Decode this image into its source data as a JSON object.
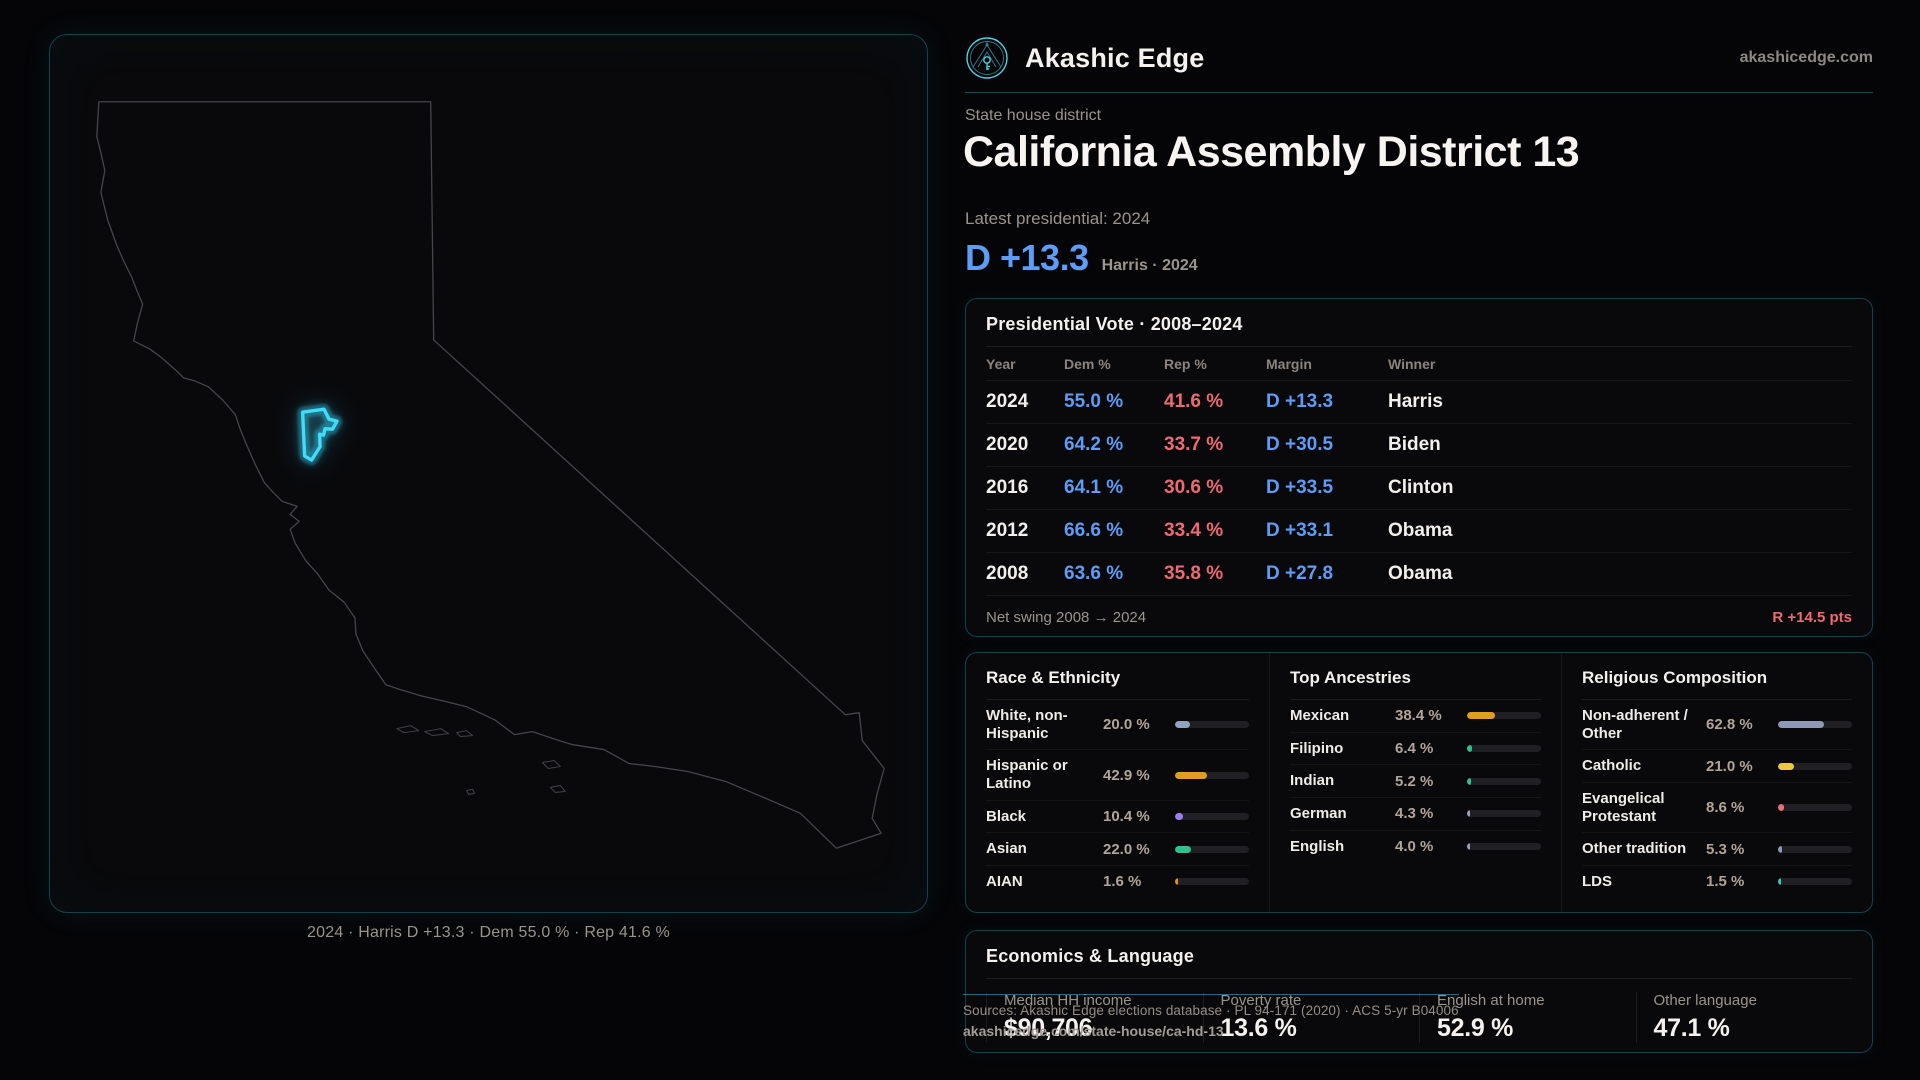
{
  "brand": {
    "name": "Akashic Edge",
    "domain": "akashicedge.com"
  },
  "header": {
    "kicker": "State house district",
    "title": "California Assembly District 13",
    "latest_label": "Latest presidential: 2024",
    "margin_big": "D +13.3",
    "margin_context": "Harris · 2024"
  },
  "map": {
    "caption": "2024 · Harris D +13.3 · Dem 55.0 % · Rep 41.6 %"
  },
  "presidential_table": {
    "title": "Presidential Vote · 2008–2024",
    "columns": {
      "year": "Year",
      "dem": "Dem %",
      "rep": "Rep %",
      "margin": "Margin",
      "winner": "Winner"
    },
    "rows": [
      {
        "year": "2024",
        "dem": "55.0 %",
        "rep": "41.6 %",
        "margin": "D +13.3",
        "winner": "Harris"
      },
      {
        "year": "2020",
        "dem": "64.2 %",
        "rep": "33.7 %",
        "margin": "D +30.5",
        "winner": "Biden"
      },
      {
        "year": "2016",
        "dem": "64.1 %",
        "rep": "30.6 %",
        "margin": "D +33.5",
        "winner": "Clinton"
      },
      {
        "year": "2012",
        "dem": "66.6 %",
        "rep": "33.4 %",
        "margin": "D +33.1",
        "winner": "Obama"
      },
      {
        "year": "2008",
        "dem": "63.6 %",
        "rep": "35.8 %",
        "margin": "D +27.8",
        "winner": "Obama"
      }
    ],
    "net_swing_label": "Net swing 2008 → 2024",
    "net_swing_value": "R +14.5 pts"
  },
  "demographics": {
    "race": {
      "title": "Race & Ethnicity",
      "rows": [
        {
          "label": "White, non-Hispanic",
          "value": "20.0 %",
          "pct": 20.0,
          "color": "#93a2c0"
        },
        {
          "label": "Hispanic or Latino",
          "value": "42.9 %",
          "pct": 42.9,
          "color": "#e09e1f"
        },
        {
          "label": "Black",
          "value": "10.4 %",
          "pct": 10.4,
          "color": "#9b7ef2"
        },
        {
          "label": "Asian",
          "value": "22.0 %",
          "pct": 22.0,
          "color": "#2fc08d"
        },
        {
          "label": "AIAN",
          "value": "1.6 %",
          "pct": 1.6,
          "color": "#e0901f"
        }
      ]
    },
    "ancestries": {
      "title": "Top Ancestries",
      "rows": [
        {
          "label": "Mexican",
          "value": "38.4 %",
          "pct": 38.4,
          "color": "#e09e1f"
        },
        {
          "label": "Filipino",
          "value": "6.4 %",
          "pct": 6.4,
          "color": "#2fc08d"
        },
        {
          "label": "Indian",
          "value": "5.2 %",
          "pct": 5.2,
          "color": "#2fc08d"
        },
        {
          "label": "German",
          "value": "4.3 %",
          "pct": 4.3,
          "color": "#93a2c0"
        },
        {
          "label": "English",
          "value": "4.0 %",
          "pct": 4.0,
          "color": "#93a2c0"
        }
      ]
    },
    "religion": {
      "title": "Religious Composition",
      "rows": [
        {
          "label": "Non-adherent / Other",
          "value": "62.8 %",
          "pct": 62.8,
          "color": "#8f99b5"
        },
        {
          "label": "Catholic",
          "value": "21.0 %",
          "pct": 21.0,
          "color": "#ecc83f"
        },
        {
          "label": "Evangelical Protestant",
          "value": "8.6 %",
          "pct": 8.6,
          "color": "#e4737c"
        },
        {
          "label": "Other tradition",
          "value": "5.3 %",
          "pct": 5.3,
          "color": "#8f99b5"
        },
        {
          "label": "LDS",
          "value": "1.5 %",
          "pct": 1.5,
          "color": "#35c8b4"
        }
      ]
    }
  },
  "economics": {
    "title": "Economics & Language",
    "stats": [
      {
        "label": "Median HH income",
        "value": "$90,706"
      },
      {
        "label": "Poverty rate",
        "value": "13.6 %"
      },
      {
        "label": "English at home",
        "value": "52.9 %"
      },
      {
        "label": "Other language",
        "value": "47.1 %"
      }
    ]
  },
  "footer": {
    "sources": "Sources: Akashic Edge elections database · PL 94-171 (2020) · ACS 5-yr B04006",
    "permalink": "akashicedge.com/state-house/ca-hd-13"
  },
  "colors": {
    "accent_cyan": "#41dcfa",
    "dem_blue": "#5d9df5",
    "rep_red": "#ee6a72",
    "card_border": "#13424d",
    "text_gray": "#9b948d",
    "background": "#050507"
  }
}
